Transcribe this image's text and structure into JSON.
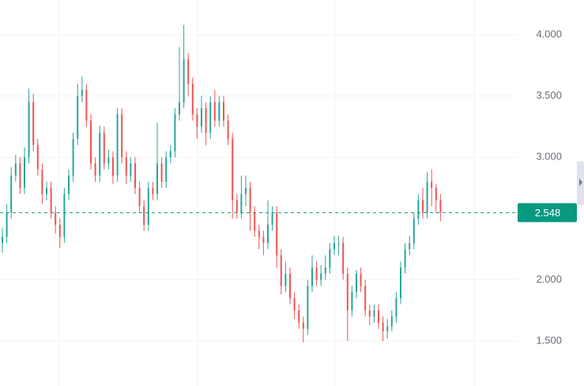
{
  "chart_data": {
    "type": "candlestick",
    "ylim": [
      1.133,
      4.284
    ],
    "yticks": [
      {
        "value": 1.5,
        "label": "1.500"
      },
      {
        "value": 2,
        "label": "2.000"
      },
      {
        "value": 3,
        "label": "3.000"
      },
      {
        "value": 3.5,
        "label": "3.500"
      },
      {
        "value": 4,
        "label": "4.000"
      }
    ],
    "grid": true,
    "up_color": "#26a69a",
    "down_color": "#ef5350",
    "last_price": {
      "value": 2.548,
      "label": "2.548"
    },
    "last_price_color": "#089981",
    "open": [
      2.3,
      2.35,
      2.55,
      2.85,
      2.95,
      2.75,
      3.0,
      3.45,
      3.1,
      2.9,
      2.7,
      2.75,
      2.55,
      2.45,
      2.35,
      2.7,
      2.85,
      3.15,
      3.5,
      3.55,
      3.3,
      2.95,
      2.85,
      3.2,
      2.95,
      3.0,
      2.85,
      3.35,
      3.0,
      2.85,
      2.95,
      2.75,
      2.6,
      2.45,
      2.75,
      2.7,
      2.95,
      2.8,
      3.0,
      3.05,
      3.35,
      3.45,
      3.8,
      3.6,
      3.35,
      3.25,
      3.4,
      3.2,
      3.45,
      3.3,
      3.45,
      3.3,
      3.15,
      2.65,
      2.55,
      2.7,
      2.75,
      2.55,
      2.4,
      2.35,
      2.3,
      2.45,
      2.55,
      2.2,
      1.95,
      2.05,
      1.85,
      1.75,
      1.65,
      1.6,
      1.95,
      2.1,
      2.0,
      2.05,
      2.1,
      2.25,
      2.3,
      2.3,
      2.05,
      1.75,
      1.9,
      2.05,
      1.95,
      1.75,
      1.7,
      1.75,
      1.65,
      1.58,
      1.62,
      1.7,
      1.85,
      2.1,
      2.25,
      2.3,
      2.5,
      2.65,
      2.55,
      2.8,
      2.75,
      2.65
    ],
    "high": [
      2.42,
      2.62,
      2.92,
      3.02,
      3.0,
      3.08,
      3.56,
      3.52,
      3.15,
      2.95,
      2.8,
      2.8,
      2.6,
      2.5,
      2.75,
      2.9,
      3.2,
      3.6,
      3.66,
      3.6,
      3.35,
      3.0,
      3.26,
      3.25,
      3.06,
      3.05,
      3.4,
      3.4,
      3.05,
      3.0,
      3.0,
      2.8,
      2.65,
      2.8,
      2.8,
      3.28,
      3.0,
      3.05,
      3.1,
      3.4,
      3.9,
      4.08,
      3.85,
      3.65,
      3.4,
      3.5,
      3.45,
      3.5,
      3.55,
      3.5,
      3.5,
      3.35,
      3.2,
      2.7,
      2.85,
      2.85,
      2.8,
      2.6,
      2.45,
      2.4,
      2.65,
      2.6,
      2.6,
      2.25,
      2.15,
      2.1,
      1.9,
      1.8,
      1.7,
      2.0,
      2.2,
      2.15,
      2.12,
      2.2,
      2.3,
      2.36,
      2.36,
      2.35,
      2.1,
      1.95,
      2.08,
      2.1,
      2.0,
      1.8,
      1.8,
      1.8,
      1.7,
      1.68,
      1.75,
      1.9,
      2.15,
      2.3,
      2.36,
      2.55,
      2.7,
      2.75,
      2.88,
      2.9,
      2.78,
      2.7
    ],
    "low": [
      2.22,
      2.3,
      2.5,
      2.8,
      2.7,
      2.7,
      2.95,
      3.05,
      2.85,
      2.62,
      2.65,
      2.5,
      2.38,
      2.26,
      2.3,
      2.65,
      2.8,
      3.1,
      3.45,
      3.25,
      2.9,
      2.8,
      2.8,
      2.9,
      2.9,
      2.78,
      2.8,
      2.95,
      2.78,
      2.8,
      2.7,
      2.55,
      2.4,
      2.4,
      2.65,
      2.65,
      2.75,
      2.75,
      2.95,
      3.0,
      3.3,
      3.4,
      3.5,
      3.3,
      3.15,
      3.2,
      3.1,
      3.15,
      3.25,
      3.25,
      3.25,
      3.1,
      2.5,
      2.5,
      2.5,
      2.6,
      2.4,
      2.35,
      2.25,
      2.2,
      2.25,
      2.4,
      2.1,
      1.88,
      1.9,
      1.8,
      1.68,
      1.6,
      1.49,
      1.55,
      1.9,
      1.95,
      1.95,
      2.0,
      2.05,
      2.2,
      2.2,
      2.0,
      1.5,
      1.7,
      1.85,
      1.9,
      1.7,
      1.63,
      1.65,
      1.6,
      1.5,
      1.52,
      1.58,
      1.65,
      1.8,
      2.05,
      2.2,
      2.25,
      2.45,
      2.5,
      2.5,
      2.6,
      2.55,
      2.48
    ],
    "close": [
      2.35,
      2.55,
      2.85,
      2.95,
      2.75,
      3.0,
      3.45,
      3.1,
      2.9,
      2.7,
      2.75,
      2.55,
      2.45,
      2.35,
      2.7,
      2.85,
      3.15,
      3.5,
      3.55,
      3.3,
      2.95,
      2.85,
      3.2,
      2.95,
      3.0,
      2.85,
      3.35,
      3.0,
      2.85,
      2.95,
      2.75,
      2.6,
      2.45,
      2.75,
      2.7,
      2.95,
      2.8,
      3.0,
      3.05,
      3.35,
      3.45,
      3.8,
      3.6,
      3.35,
      3.25,
      3.4,
      3.2,
      3.45,
      3.3,
      3.45,
      3.3,
      3.15,
      2.65,
      2.55,
      2.7,
      2.75,
      2.55,
      2.4,
      2.35,
      2.3,
      2.45,
      2.55,
      2.2,
      1.95,
      2.05,
      1.85,
      1.75,
      1.65,
      1.6,
      1.95,
      2.1,
      2.0,
      2.05,
      2.1,
      2.25,
      2.3,
      2.3,
      2.05,
      1.75,
      1.9,
      2.05,
      1.95,
      1.75,
      1.7,
      1.75,
      1.65,
      1.58,
      1.62,
      1.7,
      1.85,
      2.1,
      2.25,
      2.3,
      2.5,
      2.65,
      2.55,
      2.8,
      2.75,
      2.65,
      2.548
    ]
  }
}
